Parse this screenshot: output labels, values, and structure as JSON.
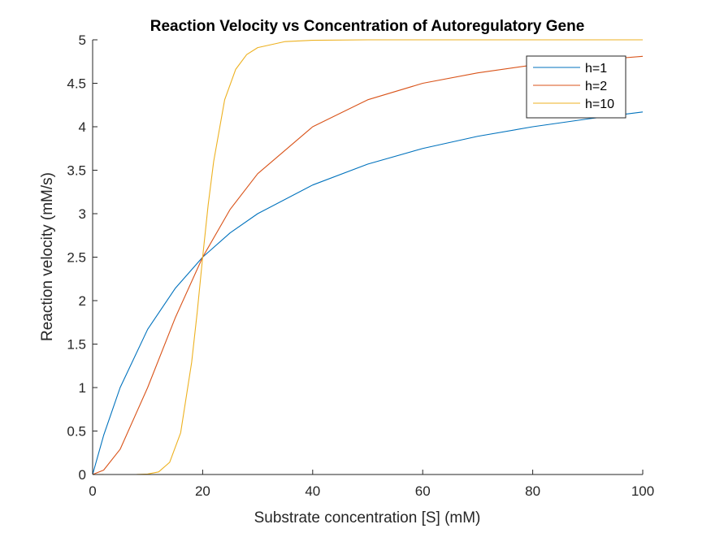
{
  "chart_data": {
    "type": "line",
    "title": "Reaction Velocity vs Concentration of Autoregulatory Gene",
    "xlabel": "Substrate concentration [S] (mM)",
    "ylabel": "Reaction velocity (mM/s)",
    "xlim": [
      0,
      100
    ],
    "ylim": [
      0,
      5
    ],
    "xticks": [
      "0",
      "20",
      "40",
      "60",
      "80",
      "100"
    ],
    "yticks": [
      "0",
      "0.5",
      "1",
      "1.5",
      "2",
      "2.5",
      "3",
      "3.5",
      "4",
      "4.5",
      "5"
    ],
    "grid": false,
    "legend_position": "top-right",
    "series": [
      {
        "name": "h=1",
        "color": "#0072BD",
        "x": [
          0,
          2,
          5,
          10,
          15,
          20,
          25,
          30,
          40,
          50,
          60,
          70,
          80,
          90,
          100
        ],
        "y": [
          0,
          0.45,
          1.0,
          1.67,
          2.14,
          2.5,
          2.78,
          3.0,
          3.33,
          3.57,
          3.75,
          3.89,
          4.0,
          4.09,
          4.17
        ]
      },
      {
        "name": "h=2",
        "color": "#D95319",
        "x": [
          0,
          2,
          5,
          10,
          15,
          20,
          25,
          30,
          40,
          50,
          60,
          70,
          80,
          90,
          100
        ],
        "y": [
          0,
          0.05,
          0.29,
          1.0,
          1.8,
          2.5,
          3.05,
          3.46,
          4.0,
          4.31,
          4.5,
          4.62,
          4.71,
          4.76,
          4.81
        ]
      },
      {
        "name": "h=10",
        "color": "#EDB120",
        "x": [
          0,
          8,
          10,
          12,
          14,
          16,
          18,
          19,
          20,
          21,
          22,
          24,
          26,
          28,
          30,
          35,
          40,
          50,
          60,
          80,
          100
        ],
        "y": [
          0,
          0.0005,
          0.005,
          0.03,
          0.14,
          0.48,
          1.29,
          1.86,
          2.5,
          3.1,
          3.6,
          4.31,
          4.66,
          4.83,
          4.91,
          4.98,
          4.995,
          5.0,
          5.0,
          5.0,
          5.0
        ]
      }
    ]
  }
}
